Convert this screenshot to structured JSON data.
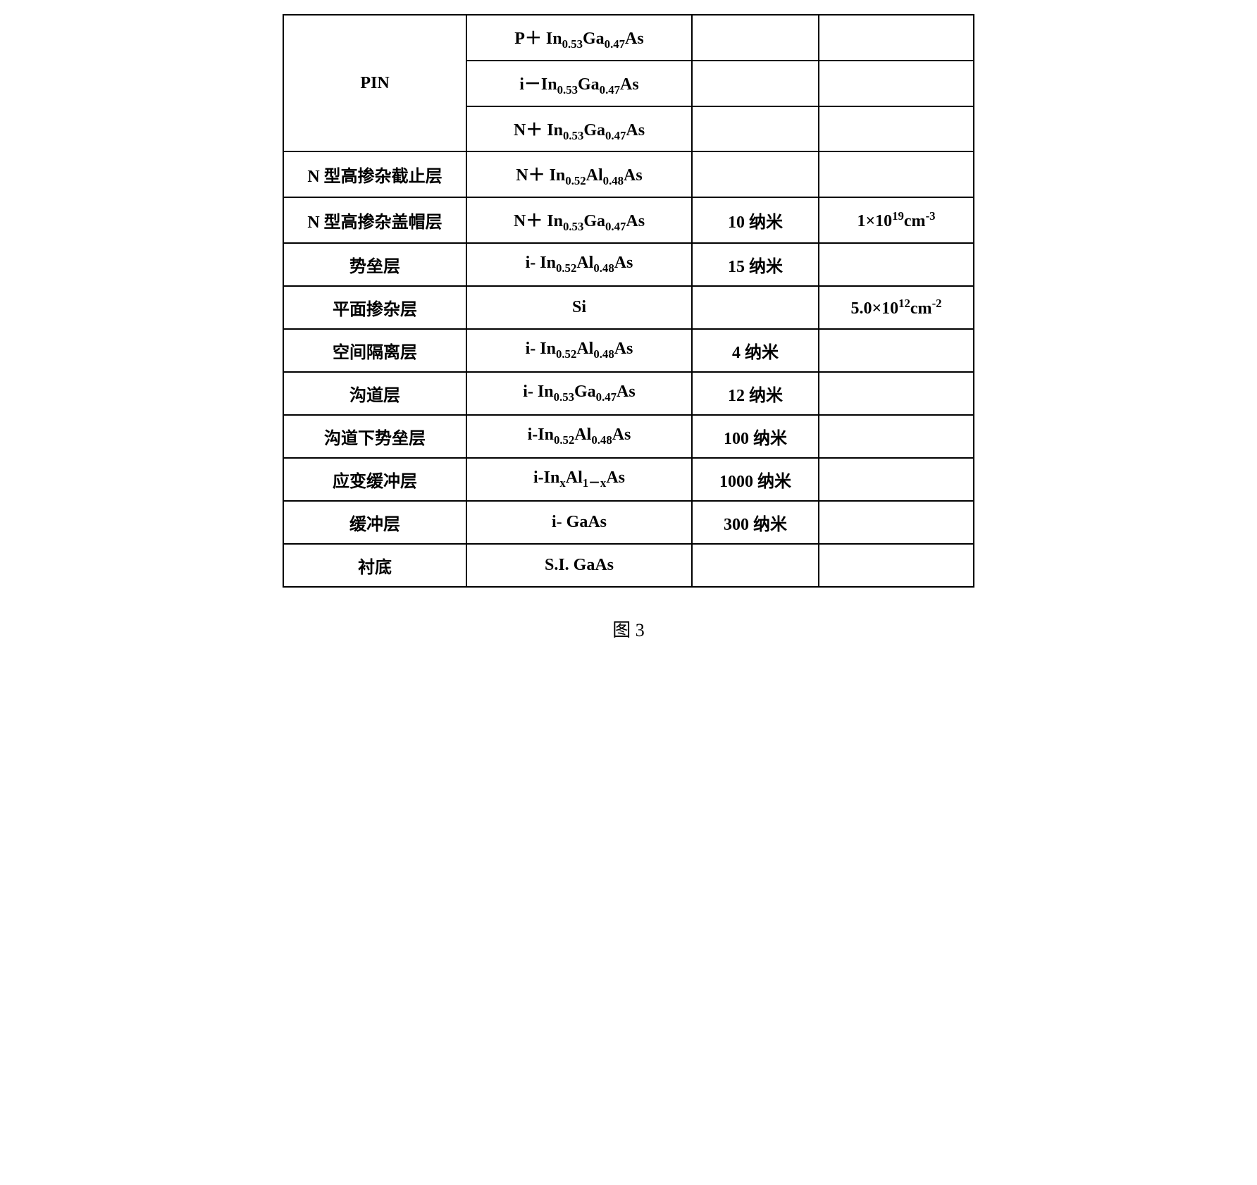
{
  "table": {
    "rows": [
      {
        "layer_html": "PIN",
        "layer_rowspan": 3,
        "material_html": "P＋ In<sub>0.53</sub>Ga<sub>0.47</sub>As",
        "thickness_html": "",
        "doping_html": ""
      },
      {
        "layer_html": null,
        "material_html": "i－In<sub>0.53</sub>Ga<sub>0.47</sub>As",
        "thickness_html": "",
        "doping_html": ""
      },
      {
        "layer_html": null,
        "material_html": "N＋ In<sub>0.53</sub>Ga<sub>0.47</sub>As",
        "thickness_html": "",
        "doping_html": ""
      },
      {
        "layer_html": "N 型高掺杂截止层",
        "material_html": "N＋ In<sub>0.52</sub>Al<sub>0.48</sub>As",
        "thickness_html": "",
        "doping_html": ""
      },
      {
        "layer_html": "N 型高掺杂盖帽层",
        "material_html": "N＋ In<sub>0.53</sub>Ga<sub>0.47</sub>As",
        "thickness_html": "10 纳米",
        "doping_html": "1×10<sup>19</sup>cm<sup>-3</sup>"
      },
      {
        "layer_html": "势垒层",
        "material_html": "i- In<sub>0.52</sub>Al<sub>0.48</sub>As",
        "thickness_html": "15 纳米",
        "doping_html": ""
      },
      {
        "layer_html": "平面掺杂层",
        "material_html": "Si",
        "thickness_html": "",
        "doping_html": "5.0×10<sup>12</sup>cm<sup>-2</sup>"
      },
      {
        "layer_html": "空间隔离层",
        "material_html": "i- In<sub>0.52</sub>Al<sub>0.48</sub>As",
        "thickness_html": "4 纳米",
        "doping_html": ""
      },
      {
        "layer_html": "沟道层",
        "material_html": "i- In<sub>0.53</sub>Ga<sub>0.47</sub>As",
        "thickness_html": "12 纳米",
        "doping_html": ""
      },
      {
        "layer_html": "沟道下势垒层",
        "material_html": "i-In<sub>0.52</sub>Al<sub>0.48</sub>As",
        "thickness_html": "100 纳米",
        "doping_html": ""
      },
      {
        "layer_html": "应变缓冲层",
        "material_html": "i-In<sub>x</sub>Al<sub>1－x</sub>As",
        "thickness_html": "1000 纳米",
        "doping_html": ""
      },
      {
        "layer_html": "缓冲层",
        "material_html": "i- GaAs",
        "thickness_html": "300 纳米",
        "doping_html": ""
      },
      {
        "layer_html": "衬底",
        "material_html": "S.I. GaAs",
        "thickness_html": "",
        "doping_html": ""
      }
    ]
  },
  "caption": "图 3",
  "styling": {
    "border_color": "#000000",
    "border_width": 2,
    "background_color": "#ffffff",
    "font_family": "Times New Roman, SimSun, serif",
    "cell_font_size": 24,
    "caption_font_size": 26,
    "column_widths": {
      "layer": 260,
      "material": 320,
      "thickness": 180,
      "doping": 220
    },
    "columns": [
      "layer",
      "material",
      "thickness",
      "doping"
    ]
  }
}
